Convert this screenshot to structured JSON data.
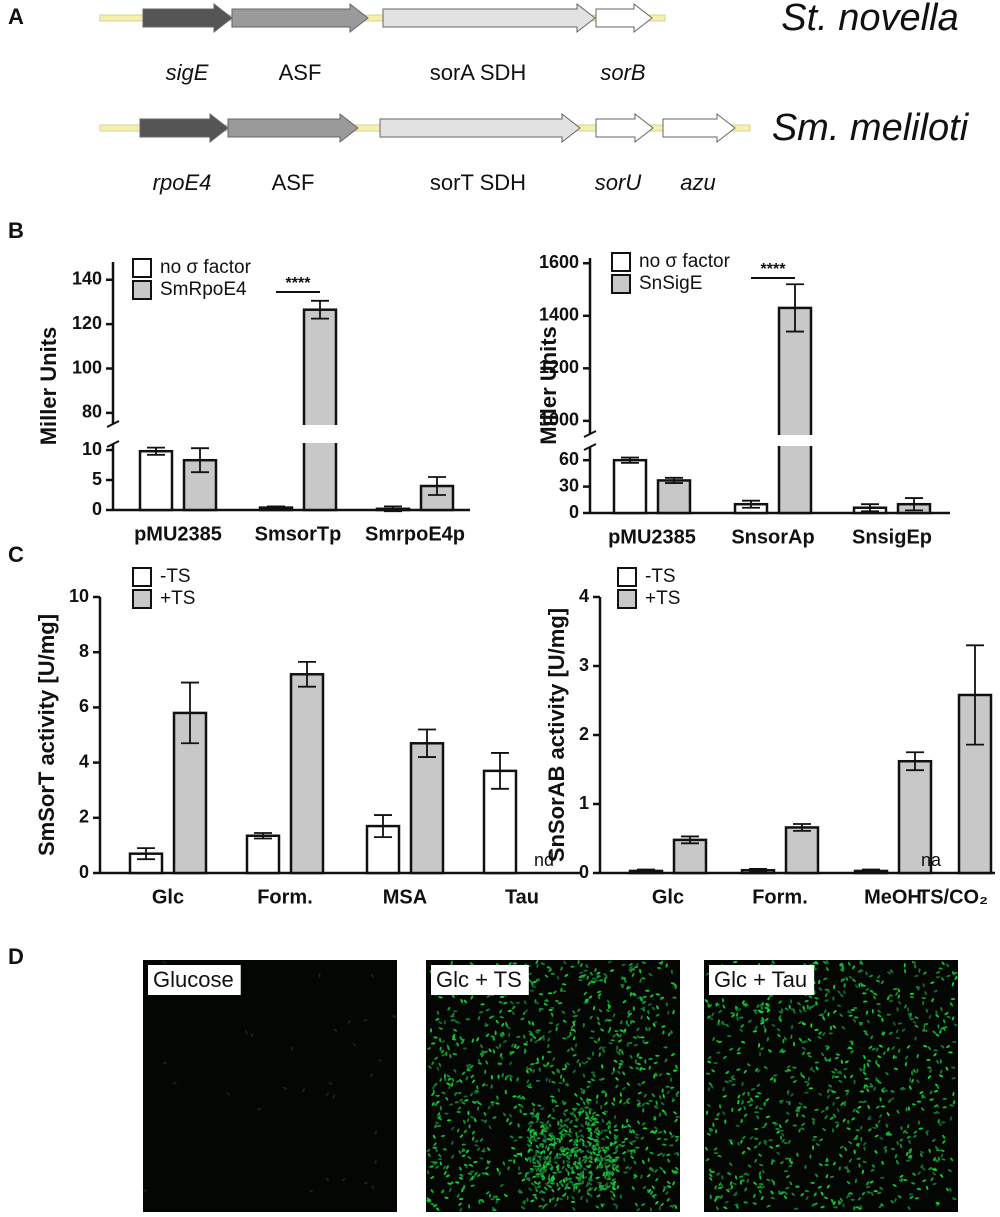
{
  "panel_labels": [
    "A",
    "B",
    "C",
    "D"
  ],
  "gene_maps": [
    {
      "species": "St. novella",
      "genes": [
        "sigE",
        "ASF",
        "sorA SDH",
        "sorB"
      ]
    },
    {
      "species": "Sm. meliloti",
      "genes": [
        "rpoE4",
        "ASF",
        "sorT SDH",
        "sorU",
        "azu"
      ]
    }
  ],
  "chart_data": [
    {
      "type": "bar",
      "ylabel": "Miller Units",
      "categories": [
        "pMU2385",
        "SmsorTp",
        "SmrpoE4p"
      ],
      "series": [
        {
          "name": "no σ factor",
          "color": "#ffffff",
          "values": [
            9.8,
            0.4,
            0.2
          ],
          "errors": [
            0.6,
            0.2,
            0.4
          ]
        },
        {
          "name": "SmRpoE4",
          "color": "#c8c8c8",
          "values": [
            8.3,
            126.5,
            4
          ],
          "errors": [
            2,
            4,
            1.5
          ]
        }
      ],
      "ylim_segments": [
        [
          0,
          11
        ],
        [
          75,
          148
        ]
      ],
      "yticks": [
        0,
        5,
        10,
        80,
        100,
        120,
        140
      ],
      "significance": "****",
      "legend": "upper left"
    },
    {
      "type": "bar",
      "ylabel": "Miller Units",
      "categories": [
        "pMU2385",
        "SnsorAp",
        "SnsigEp"
      ],
      "series": [
        {
          "name": "no σ factor",
          "color": "#ffffff",
          "values": [
            60,
            10,
            6
          ],
          "errors": [
            3,
            4,
            4
          ]
        },
        {
          "name": "SnSigE",
          "color": "#c8c8c8",
          "values": [
            37,
            1430,
            10
          ],
          "errors": [
            3,
            90,
            7
          ]
        }
      ],
      "ylim_segments": [
        [
          0,
          75
        ],
        [
          950,
          1620
        ]
      ],
      "yticks": [
        0,
        30,
        60,
        1000,
        1200,
        1400,
        1600
      ],
      "significance": "****",
      "legend": "upper left"
    },
    {
      "type": "bar",
      "ylabel": "SmSorT activity [U/mg]",
      "categories": [
        "Glc",
        "Form.",
        "MSA",
        "Tau"
      ],
      "series": [
        {
          "name": "-TS",
          "color": "#ffffff",
          "values": [
            0.7,
            1.35,
            1.7,
            3.7
          ],
          "errors": [
            0.2,
            0.1,
            0.4,
            0.65
          ]
        },
        {
          "name": "+TS",
          "color": "#c8c8c8",
          "values": [
            5.8,
            7.2,
            4.7,
            null
          ],
          "errors": [
            1.1,
            0.45,
            0.5,
            null
          ]
        }
      ],
      "ylim": [
        0,
        10
      ],
      "yticks": [
        0,
        2,
        4,
        6,
        8,
        10
      ],
      "annotations": [
        {
          "text": "nd",
          "category": "Tau",
          "series": "+TS"
        }
      ],
      "legend": "upper left"
    },
    {
      "type": "bar",
      "ylabel": "SnSorAB activity [U/mg]",
      "categories": [
        "Glc",
        "Form.",
        "MeOH",
        "TS/CO₂"
      ],
      "series": [
        {
          "name": "-TS",
          "color": "#ffffff",
          "values": [
            0.03,
            0.04,
            0.03,
            null
          ],
          "errors": [
            0.02,
            0.02,
            0.02,
            null
          ]
        },
        {
          "name": "+TS",
          "color": "#c8c8c8",
          "values": [
            0.48,
            0.66,
            1.62,
            2.58
          ],
          "errors": [
            0.05,
            0.05,
            0.13,
            0.72
          ]
        }
      ],
      "ylim": [
        0,
        4
      ],
      "yticks": [
        0,
        1,
        2,
        3,
        4
      ],
      "annotations": [
        {
          "text": "na",
          "category": "TS/CO₂",
          "series": "-TS"
        }
      ],
      "legend": "upper left"
    }
  ],
  "micrographs": [
    "Glucose",
    "Glc + TS",
    "Glc + Tau"
  ]
}
